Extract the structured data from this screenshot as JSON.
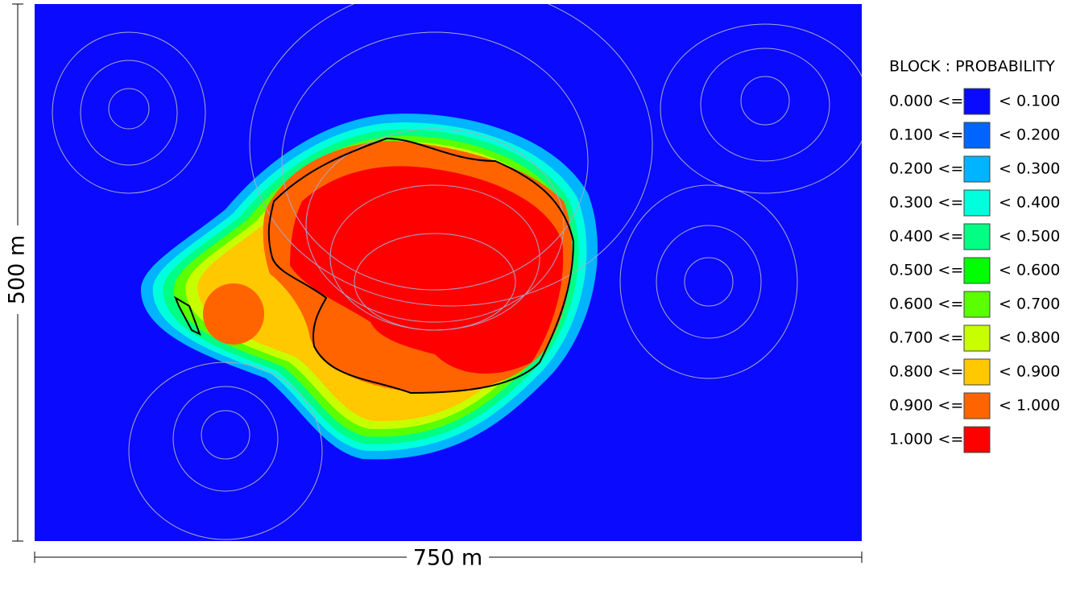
{
  "scale_bars": {
    "vertical": "500 m",
    "horizontal": "750 m"
  },
  "legend": {
    "title": "BLOCK : PROBABILITY",
    "items": [
      {
        "from": "0.000 <=",
        "to": "< 0.100",
        "color": "#0a0aff"
      },
      {
        "from": "0.100 <=",
        "to": "< 0.200",
        "color": "#0064ff"
      },
      {
        "from": "0.200 <=",
        "to": "< 0.300",
        "color": "#00b4ff"
      },
      {
        "from": "0.300 <=",
        "to": "< 0.400",
        "color": "#00ffdc"
      },
      {
        "from": "0.400 <=",
        "to": "< 0.500",
        "color": "#00ff82"
      },
      {
        "from": "0.500 <=",
        "to": "< 0.600",
        "color": "#00ff00"
      },
      {
        "from": "0.600 <=",
        "to": "< 0.700",
        "color": "#5aff00"
      },
      {
        "from": "0.700 <=",
        "to": "< 0.800",
        "color": "#c8ff00"
      },
      {
        "from": "0.800 <=",
        "to": "< 0.900",
        "color": "#ffc800"
      },
      {
        "from": "0.900 <=",
        "to": "< 1.000",
        "color": "#ff6400"
      },
      {
        "from": "1.000 <=",
        "color": "#ff0000"
      }
    ]
  }
}
